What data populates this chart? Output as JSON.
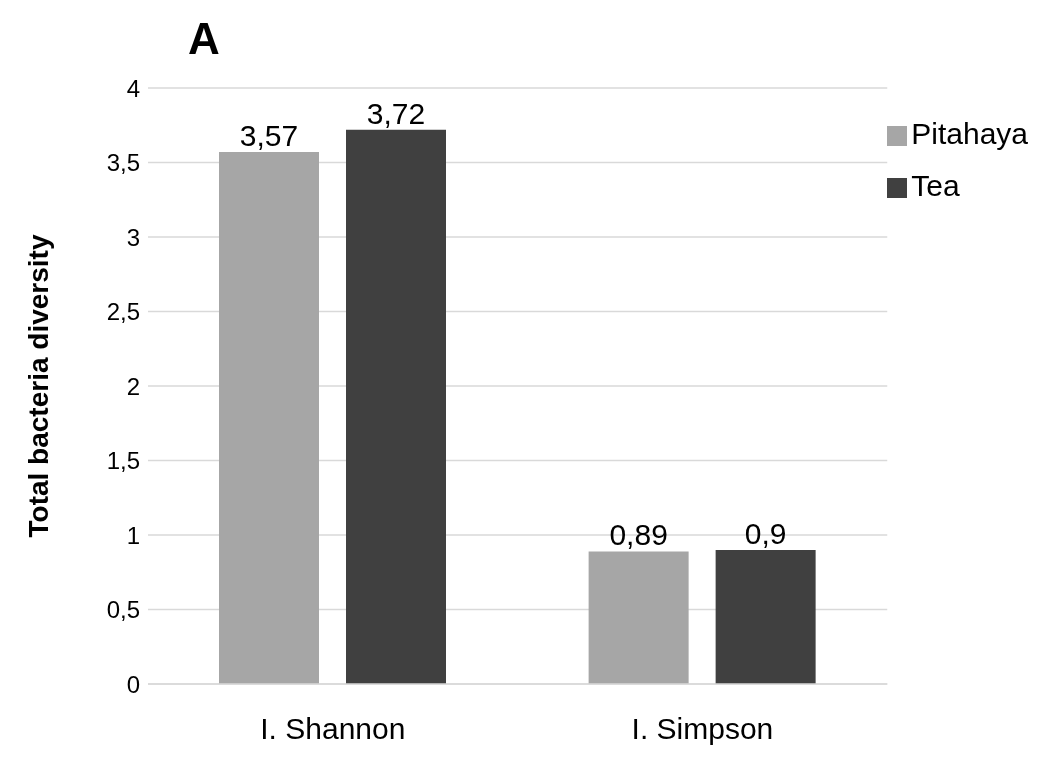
{
  "chart_data": {
    "type": "bar",
    "title": "A",
    "ylabel": "Total bacteria diversity",
    "categories": [
      "I. Shannon",
      "I. Simpson"
    ],
    "series": [
      {
        "name": "Pitahaya",
        "color": "#a6a6a6",
        "values": [
          3.57,
          0.89
        ],
        "value_labels": [
          "3,57",
          "0,89"
        ]
      },
      {
        "name": "Tea",
        "color": "#404040",
        "values": [
          3.72,
          0.9
        ],
        "value_labels": [
          "3,72",
          "0,9"
        ]
      }
    ],
    "ylim": [
      0,
      4
    ],
    "yticks": [
      0,
      {
        "value": 0.5,
        "label": "0,5"
      },
      1,
      {
        "value": 1.5,
        "label": "1,5"
      },
      2,
      {
        "value": 2.5,
        "label": "2,5"
      },
      3,
      {
        "value": 3.5,
        "label": "3,5"
      },
      4
    ],
    "grid": "y",
    "legend": "top right"
  }
}
